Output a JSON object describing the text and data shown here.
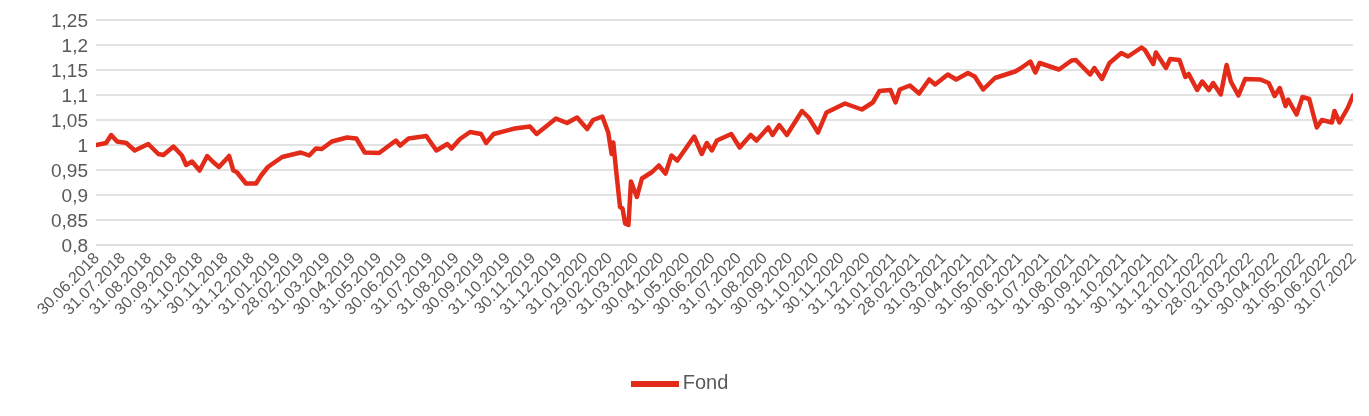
{
  "chart_data": {
    "type": "line",
    "x": [
      "2018-06-30",
      "2018-07-12",
      "2018-07-18",
      "2018-07-25",
      "2018-08-05",
      "2018-08-15",
      "2018-08-31",
      "2018-09-12",
      "2018-09-18",
      "2018-09-30",
      "2018-10-10",
      "2018-10-15",
      "2018-10-22",
      "2018-10-31",
      "2018-11-09",
      "2018-11-16",
      "2018-11-23",
      "2018-12-05",
      "2018-12-10",
      "2018-12-14",
      "2018-12-25",
      "2019-01-06",
      "2019-01-12",
      "2019-01-20",
      "2019-02-06",
      "2019-02-28",
      "2019-03-10",
      "2019-03-18",
      "2019-03-25",
      "2019-04-06",
      "2019-04-24",
      "2019-05-05",
      "2019-05-15",
      "2019-06-01",
      "2019-06-21",
      "2019-06-26",
      "2019-07-06",
      "2019-07-27",
      "2019-08-08",
      "2019-08-21",
      "2019-08-26",
      "2019-09-05",
      "2019-09-17",
      "2019-09-30",
      "2019-10-06",
      "2019-10-15",
      "2019-11-09",
      "2019-11-27",
      "2019-12-05",
      "2019-12-28",
      "2020-01-10",
      "2020-01-22",
      "2020-02-03",
      "2020-02-10",
      "2020-02-21",
      "2020-02-28",
      "2020-03-03",
      "2020-03-05",
      "2020-03-09",
      "2020-03-13",
      "2020-03-16",
      "2020-03-19",
      "2020-03-23",
      "2020-03-26",
      "2020-04-02",
      "2020-04-08",
      "2020-04-20",
      "2020-04-28",
      "2020-05-06",
      "2020-05-13",
      "2020-05-20",
      "2020-06-09",
      "2020-06-18",
      "2020-06-24",
      "2020-06-30",
      "2020-07-06",
      "2020-07-23",
      "2020-08-02",
      "2020-08-15",
      "2020-08-22",
      "2020-09-05",
      "2020-09-10",
      "2020-09-18",
      "2020-09-27",
      "2020-10-15",
      "2020-10-23",
      "2020-11-03",
      "2020-11-13",
      "2020-12-05",
      "2020-12-25",
      "2021-01-07",
      "2021-01-15",
      "2021-01-28",
      "2021-02-03",
      "2021-02-08",
      "2021-02-20",
      "2021-03-03",
      "2021-03-15",
      "2021-03-22",
      "2021-04-06",
      "2021-04-16",
      "2021-04-30",
      "2021-05-08",
      "2021-05-18",
      "2021-05-21",
      "2021-06-01",
      "2021-06-25",
      "2021-07-02",
      "2021-07-13",
      "2021-07-19",
      "2021-07-24",
      "2021-08-07",
      "2021-08-16",
      "2021-08-31",
      "2021-09-05",
      "2021-09-22",
      "2021-09-27",
      "2021-10-06",
      "2021-10-15",
      "2021-10-29",
      "2021-11-06",
      "2021-11-22",
      "2021-11-26",
      "2021-12-06",
      "2021-12-09",
      "2021-12-21",
      "2021-12-26",
      "2022-01-06",
      "2022-01-13",
      "2022-01-17",
      "2022-01-27",
      "2022-02-02",
      "2022-02-10",
      "2022-02-15",
      "2022-02-24",
      "2022-03-03",
      "2022-03-08",
      "2022-03-17",
      "2022-03-25",
      "2022-04-12",
      "2022-04-22",
      "2022-04-29",
      "2022-05-05",
      "2022-05-12",
      "2022-05-15",
      "2022-05-25",
      "2022-06-01",
      "2022-06-09",
      "2022-06-18",
      "2022-06-24",
      "2022-07-06",
      "2022-07-09",
      "2022-07-15",
      "2022-07-25",
      "2022-07-31"
    ],
    "series": [
      {
        "name": "Fond",
        "color": "#e32b1a",
        "values": [
          1.0,
          1.004,
          1.02,
          1.007,
          1.004,
          0.989,
          1.002,
          0.982,
          0.98,
          0.997,
          0.979,
          0.96,
          0.967,
          0.949,
          0.978,
          0.966,
          0.956,
          0.978,
          0.949,
          0.946,
          0.923,
          0.923,
          0.939,
          0.956,
          0.976,
          0.985,
          0.979,
          0.993,
          0.992,
          1.007,
          1.015,
          1.013,
          0.985,
          0.984,
          1.009,
          0.999,
          1.013,
          1.018,
          0.989,
          1.002,
          0.993,
          1.012,
          1.026,
          1.022,
          1.004,
          1.022,
          1.033,
          1.037,
          1.022,
          1.053,
          1.044,
          1.055,
          1.032,
          1.05,
          1.057,
          1.025,
          0.982,
          1.005,
          0.939,
          0.876,
          0.873,
          0.843,
          0.84,
          0.927,
          0.896,
          0.933,
          0.946,
          0.959,
          0.943,
          0.979,
          0.969,
          1.017,
          0.982,
          1.004,
          0.989,
          1.009,
          1.022,
          0.995,
          1.02,
          1.009,
          1.035,
          1.02,
          1.04,
          1.02,
          1.068,
          1.055,
          1.025,
          1.065,
          1.083,
          1.071,
          1.085,
          1.108,
          1.11,
          1.085,
          1.111,
          1.119,
          1.103,
          1.131,
          1.121,
          1.141,
          1.131,
          1.144,
          1.137,
          1.111,
          1.116,
          1.134,
          1.147,
          1.154,
          1.167,
          1.145,
          1.164,
          1.156,
          1.151,
          1.169,
          1.17,
          1.141,
          1.154,
          1.132,
          1.164,
          1.184,
          1.177,
          1.195,
          1.19,
          1.162,
          1.185,
          1.154,
          1.172,
          1.17,
          1.136,
          1.142,
          1.11,
          1.127,
          1.11,
          1.124,
          1.101,
          1.16,
          1.127,
          1.099,
          1.132,
          1.131,
          1.124,
          1.098,
          1.114,
          1.078,
          1.091,
          1.061,
          1.096,
          1.092,
          1.035,
          1.05,
          1.045,
          1.068,
          1.045,
          1.075,
          1.099
        ]
      }
    ],
    "xlim": [
      "2018-06-30",
      "2022-07-31"
    ],
    "xticks": [
      {
        "value": "2018-06-30",
        "label": "30.06.2018"
      },
      {
        "value": "2018-07-31",
        "label": "31.07.2018"
      },
      {
        "value": "2018-08-31",
        "label": "31.08.2018"
      },
      {
        "value": "2018-09-30",
        "label": "30.09.2018"
      },
      {
        "value": "2018-10-31",
        "label": "31.10.2018"
      },
      {
        "value": "2018-11-30",
        "label": "30.11.2018"
      },
      {
        "value": "2018-12-31",
        "label": "31.12.2018"
      },
      {
        "value": "2019-01-31",
        "label": "31.01.2019"
      },
      {
        "value": "2019-02-28",
        "label": "28.02.2019"
      },
      {
        "value": "2019-03-31",
        "label": "31.03.2019"
      },
      {
        "value": "2019-04-30",
        "label": "30.04.2019"
      },
      {
        "value": "2019-05-31",
        "label": "31.05.2019"
      },
      {
        "value": "2019-06-30",
        "label": "30.06.2019"
      },
      {
        "value": "2019-07-31",
        "label": "31.07.2019"
      },
      {
        "value": "2019-08-31",
        "label": "31.08.2019"
      },
      {
        "value": "2019-09-30",
        "label": "30.09.2019"
      },
      {
        "value": "2019-10-31",
        "label": "31.10.2019"
      },
      {
        "value": "2019-11-30",
        "label": "30.11.2019"
      },
      {
        "value": "2019-12-31",
        "label": "31.12.2019"
      },
      {
        "value": "2020-01-31",
        "label": "31.01.2020"
      },
      {
        "value": "2020-02-29",
        "label": "29.02.2020"
      },
      {
        "value": "2020-03-31",
        "label": "31.03.2020"
      },
      {
        "value": "2020-04-30",
        "label": "30.04.2020"
      },
      {
        "value": "2020-05-31",
        "label": "31.05.2020"
      },
      {
        "value": "2020-06-30",
        "label": "30.06.2020"
      },
      {
        "value": "2020-07-31",
        "label": "31.07.2020"
      },
      {
        "value": "2020-08-31",
        "label": "31.08.2020"
      },
      {
        "value": "2020-09-30",
        "label": "30.09.2020"
      },
      {
        "value": "2020-10-31",
        "label": "31.10.2020"
      },
      {
        "value": "2020-11-30",
        "label": "30.11.2020"
      },
      {
        "value": "2020-12-31",
        "label": "31.12.2020"
      },
      {
        "value": "2021-01-31",
        "label": "31.01.2021"
      },
      {
        "value": "2021-02-28",
        "label": "28.02.2021"
      },
      {
        "value": "2021-03-31",
        "label": "31.03.2021"
      },
      {
        "value": "2021-04-30",
        "label": "30.04.2021"
      },
      {
        "value": "2021-05-31",
        "label": "31.05.2021"
      },
      {
        "value": "2021-06-30",
        "label": "30.06.2021"
      },
      {
        "value": "2021-07-31",
        "label": "31.07.2021"
      },
      {
        "value": "2021-08-31",
        "label": "31.08.2021"
      },
      {
        "value": "2021-09-30",
        "label": "30.09.2021"
      },
      {
        "value": "2021-10-31",
        "label": "31.10.2021"
      },
      {
        "value": "2021-11-30",
        "label": "30.11.2021"
      },
      {
        "value": "2021-12-31",
        "label": "31.12.2021"
      },
      {
        "value": "2022-01-31",
        "label": "31.01.2022"
      },
      {
        "value": "2022-02-28",
        "label": "28.02.2022"
      },
      {
        "value": "2022-03-31",
        "label": "31.03.2022"
      },
      {
        "value": "2022-04-30",
        "label": "30.04.2022"
      },
      {
        "value": "2022-05-31",
        "label": "31.05.2022"
      },
      {
        "value": "2022-06-30",
        "label": "30.06.2022"
      },
      {
        "value": "2022-07-31",
        "label": "31.07.2022"
      }
    ],
    "ylim": [
      0.8,
      1.25
    ],
    "yticks": [
      {
        "value": 0.8,
        "label": "0,8"
      },
      {
        "value": 0.85,
        "label": "0,85"
      },
      {
        "value": 0.9,
        "label": "0,9"
      },
      {
        "value": 0.95,
        "label": "0,95"
      },
      {
        "value": 1.0,
        "label": "1"
      },
      {
        "value": 1.05,
        "label": "1,05"
      },
      {
        "value": 1.1,
        "label": "1,1"
      },
      {
        "value": 1.15,
        "label": "1,15"
      },
      {
        "value": 1.2,
        "label": "1,2"
      },
      {
        "value": 1.25,
        "label": "1,25"
      }
    ],
    "grid": "y",
    "legend": "bottom",
    "marker": "none",
    "line_style": "solid"
  }
}
